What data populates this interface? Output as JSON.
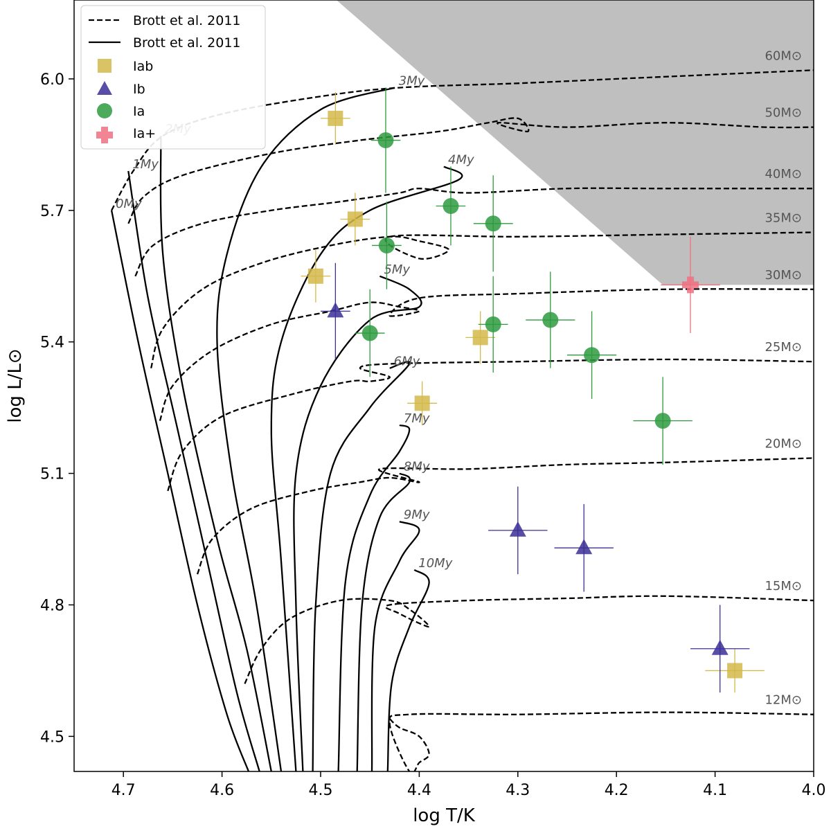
{
  "chart_data": {
    "type": "scatter",
    "xlabel": "log T/K",
    "ylabel": "log L/L⊙",
    "xlim": [
      4.75,
      4.0
    ],
    "ylim": [
      4.42,
      6.18
    ],
    "xticks": [
      "4.7",
      "4.6",
      "4.5",
      "4.4",
      "4.3",
      "4.2",
      "4.1",
      "4.0"
    ],
    "yticks": [
      "4.5",
      "4.8",
      "5.1",
      "5.4",
      "5.7",
      "6.0"
    ],
    "legend": {
      "placement": "top-left",
      "entries": [
        {
          "label": "Brott et al. 2011",
          "kind": "dashed-line"
        },
        {
          "label": "Brott et al. 2011",
          "kind": "solid-line"
        },
        {
          "label": "Iab",
          "kind": "square",
          "color": "#d4b94a"
        },
        {
          "label": "Ib",
          "kind": "triangle",
          "color": "#3b2f96"
        },
        {
          "label": "Ia",
          "kind": "circle",
          "color": "#2e9a3e"
        },
        {
          "label": "Ia+",
          "kind": "plus",
          "color": "#f07080"
        }
      ]
    },
    "forbidden_region": {
      "color": "#bfbfbf",
      "vertices": [
        [
          4.484,
          6.18
        ],
        [
          4.0,
          6.18
        ],
        [
          4.0,
          5.53
        ],
        [
          4.153,
          5.53
        ]
      ]
    },
    "mass_tracks": [
      {
        "label": "60M⊙",
        "points": [
          [
            4.712,
            5.7
          ],
          [
            4.69,
            5.79
          ],
          [
            4.66,
            5.87
          ],
          [
            4.6,
            5.92
          ],
          [
            4.5,
            5.96
          ],
          [
            4.42,
            5.98
          ],
          [
            4.3,
            5.99
          ],
          [
            4.2,
            6.0
          ],
          [
            4.1,
            6.01
          ],
          [
            4.0,
            6.02
          ]
        ]
      },
      {
        "label": "50M⊙",
        "points": [
          [
            4.695,
            5.67
          ],
          [
            4.68,
            5.73
          ],
          [
            4.64,
            5.78
          ],
          [
            4.55,
            5.83
          ],
          [
            4.46,
            5.86
          ],
          [
            4.38,
            5.88
          ],
          [
            4.33,
            5.9
          ],
          [
            4.3,
            5.91
          ],
          [
            4.29,
            5.88
          ],
          [
            4.32,
            5.9
          ],
          [
            4.25,
            5.89
          ],
          [
            4.15,
            5.9
          ],
          [
            4.05,
            5.89
          ],
          [
            4.0,
            5.89
          ]
        ]
      },
      {
        "label": "40M⊙",
        "points": [
          [
            4.688,
            5.55
          ],
          [
            4.67,
            5.62
          ],
          [
            4.62,
            5.67
          ],
          [
            4.55,
            5.7
          ],
          [
            4.48,
            5.72
          ],
          [
            4.42,
            5.74
          ],
          [
            4.4,
            5.75
          ],
          [
            4.35,
            5.74
          ],
          [
            4.25,
            5.75
          ],
          [
            4.15,
            5.75
          ],
          [
            4.0,
            5.75
          ]
        ]
      },
      {
        "label": "35M⊙",
        "points": [
          [
            4.672,
            5.34
          ],
          [
            4.66,
            5.43
          ],
          [
            4.62,
            5.52
          ],
          [
            4.56,
            5.58
          ],
          [
            4.49,
            5.62
          ],
          [
            4.43,
            5.64
          ],
          [
            4.4,
            5.63
          ],
          [
            4.37,
            5.61
          ],
          [
            4.4,
            5.59
          ],
          [
            4.43,
            5.64
          ],
          [
            4.3,
            5.64
          ],
          [
            4.15,
            5.645
          ],
          [
            4.0,
            5.65
          ]
        ]
      },
      {
        "label": "30M⊙",
        "points": [
          [
            4.663,
            5.22
          ],
          [
            4.65,
            5.3
          ],
          [
            4.61,
            5.38
          ],
          [
            4.55,
            5.44
          ],
          [
            4.49,
            5.47
          ],
          [
            4.45,
            5.49
          ],
          [
            4.42,
            5.48
          ],
          [
            4.4,
            5.47
          ],
          [
            4.43,
            5.46
          ],
          [
            4.4,
            5.5
          ],
          [
            4.3,
            5.51
          ],
          [
            4.15,
            5.52
          ],
          [
            4.0,
            5.52
          ]
        ]
      },
      {
        "label": "25M⊙",
        "points": [
          [
            4.655,
            5.06
          ],
          [
            4.64,
            5.15
          ],
          [
            4.6,
            5.23
          ],
          [
            4.53,
            5.28
          ],
          [
            4.47,
            5.31
          ],
          [
            4.45,
            5.31
          ],
          [
            4.43,
            5.32
          ],
          [
            4.46,
            5.34
          ],
          [
            4.43,
            5.35
          ],
          [
            4.3,
            5.355
          ],
          [
            4.15,
            5.36
          ],
          [
            4.0,
            5.355
          ]
        ]
      },
      {
        "label": "20M⊙",
        "points": [
          [
            4.625,
            4.87
          ],
          [
            4.61,
            4.95
          ],
          [
            4.57,
            5.02
          ],
          [
            4.51,
            5.06
          ],
          [
            4.46,
            5.08
          ],
          [
            4.43,
            5.09
          ],
          [
            4.4,
            5.08
          ],
          [
            4.44,
            5.11
          ],
          [
            4.35,
            5.11
          ],
          [
            4.25,
            5.12
          ],
          [
            4.15,
            5.125
          ],
          [
            4.0,
            5.135
          ]
        ]
      },
      {
        "label": "15M⊙",
        "points": [
          [
            4.577,
            4.62
          ],
          [
            4.56,
            4.7
          ],
          [
            4.53,
            4.77
          ],
          [
            4.48,
            4.81
          ],
          [
            4.43,
            4.81
          ],
          [
            4.41,
            4.79
          ],
          [
            4.39,
            4.75
          ],
          [
            4.42,
            4.78
          ],
          [
            4.43,
            4.8
          ],
          [
            4.35,
            4.81
          ],
          [
            4.25,
            4.815
          ],
          [
            4.15,
            4.82
          ],
          [
            4.0,
            4.81
          ]
        ]
      },
      {
        "label": "12M⊙",
        "points": [
          [
            4.43,
            4.54
          ],
          [
            4.42,
            4.52
          ],
          [
            4.4,
            4.5
          ],
          [
            4.39,
            4.46
          ],
          [
            4.4,
            4.44
          ],
          [
            4.41,
            4.42
          ],
          [
            4.43,
            4.53
          ],
          [
            4.41,
            4.55
          ],
          [
            4.3,
            4.55
          ],
          [
            4.15,
            4.555
          ],
          [
            4.0,
            4.55
          ]
        ]
      }
    ],
    "isochrones": [
      {
        "label": "0My",
        "points": [
          [
            4.712,
            5.7
          ],
          [
            4.685,
            5.4
          ],
          [
            4.655,
            5.1
          ],
          [
            4.625,
            4.8
          ],
          [
            4.595,
            4.55
          ],
          [
            4.573,
            4.42
          ]
        ]
      },
      {
        "label": "1My",
        "points": [
          [
            4.695,
            5.79
          ],
          [
            4.675,
            5.5
          ],
          [
            4.645,
            5.2
          ],
          [
            4.615,
            4.9
          ],
          [
            4.585,
            4.6
          ],
          [
            4.562,
            4.42
          ]
        ]
      },
      {
        "label": "2My",
        "points": [
          [
            4.662,
            5.87
          ],
          [
            4.66,
            5.6
          ],
          [
            4.64,
            5.3
          ],
          [
            4.605,
            4.95
          ],
          [
            4.575,
            4.7
          ],
          [
            4.55,
            4.42
          ]
        ]
      },
      {
        "label": "3My",
        "points": [
          [
            4.425,
            5.98
          ],
          [
            4.5,
            5.93
          ],
          [
            4.56,
            5.8
          ],
          [
            4.595,
            5.6
          ],
          [
            4.605,
            5.4
          ],
          [
            4.59,
            5.1
          ],
          [
            4.565,
            4.8
          ],
          [
            4.54,
            4.42
          ]
        ]
      },
      {
        "label": "4My",
        "points": [
          [
            4.375,
            5.8
          ],
          [
            4.36,
            5.77
          ],
          [
            4.45,
            5.7
          ],
          [
            4.5,
            5.6
          ],
          [
            4.54,
            5.4
          ],
          [
            4.55,
            5.2
          ],
          [
            4.54,
            4.9
          ],
          [
            4.525,
            4.42
          ]
        ]
      },
      {
        "label": "5My",
        "points": [
          [
            4.44,
            5.55
          ],
          [
            4.41,
            5.52
          ],
          [
            4.4,
            5.48
          ],
          [
            4.45,
            5.45
          ],
          [
            4.5,
            5.3
          ],
          [
            4.525,
            5.1
          ],
          [
            4.525,
            4.8
          ],
          [
            4.518,
            4.42
          ]
        ]
      },
      {
        "label": "6My",
        "points": [
          [
            4.43,
            5.34
          ],
          [
            4.41,
            5.35
          ],
          [
            4.45,
            5.25
          ],
          [
            4.49,
            5.1
          ],
          [
            4.505,
            4.8
          ],
          [
            4.508,
            4.42
          ]
        ]
      },
      {
        "label": "7My",
        "points": [
          [
            4.42,
            5.21
          ],
          [
            4.41,
            5.2
          ],
          [
            4.42,
            5.15
          ],
          [
            4.45,
            5.05
          ],
          [
            4.475,
            4.85
          ],
          [
            4.482,
            4.42
          ]
        ]
      },
      {
        "label": "8My",
        "points": [
          [
            4.42,
            5.1
          ],
          [
            4.41,
            5.08
          ],
          [
            4.44,
            5.0
          ],
          [
            4.458,
            4.8
          ],
          [
            4.463,
            4.42
          ]
        ]
      },
      {
        "label": "9My",
        "points": [
          [
            4.42,
            4.99
          ],
          [
            4.4,
            4.97
          ],
          [
            4.42,
            4.9
          ],
          [
            4.445,
            4.75
          ],
          [
            4.448,
            4.42
          ]
        ]
      },
      {
        "label": "10My",
        "points": [
          [
            4.405,
            4.88
          ],
          [
            4.39,
            4.85
          ],
          [
            4.41,
            4.75
          ],
          [
            4.428,
            4.62
          ],
          [
            4.432,
            4.42
          ]
        ]
      }
    ],
    "series": [
      {
        "name": "Iab",
        "marker": "square",
        "color": "#d4b94a",
        "points": [
          {
            "x": 4.485,
            "y": 5.91,
            "xerr": 0.015,
            "yerr": 0.06
          },
          {
            "x": 4.465,
            "y": 5.68,
            "xerr": 0.015,
            "yerr": 0.06
          },
          {
            "x": 4.505,
            "y": 5.55,
            "xerr": 0.015,
            "yerr": 0.06
          },
          {
            "x": 4.338,
            "y": 5.41,
            "xerr": 0.015,
            "yerr": 0.06
          },
          {
            "x": 4.397,
            "y": 5.26,
            "xerr": 0.015,
            "yerr": 0.05
          },
          {
            "x": 4.08,
            "y": 4.65,
            "xerr": 0.03,
            "yerr": 0.05
          }
        ]
      },
      {
        "name": "Ib",
        "marker": "triangle",
        "color": "#3b2f96",
        "points": [
          {
            "x": 4.485,
            "y": 5.47,
            "xerr": 0.015,
            "yerr": 0.11
          },
          {
            "x": 4.3,
            "y": 4.97,
            "xerr": 0.03,
            "yerr": 0.1
          },
          {
            "x": 4.233,
            "y": 4.93,
            "xerr": 0.03,
            "yerr": 0.1
          },
          {
            "x": 4.095,
            "y": 4.7,
            "xerr": 0.03,
            "yerr": 0.1
          }
        ]
      },
      {
        "name": "Ia",
        "marker": "circle",
        "color": "#2e9a3e",
        "points": [
          {
            "x": 4.434,
            "y": 5.86,
            "xerr": 0.015,
            "yerr": 0.12
          },
          {
            "x": 4.368,
            "y": 5.71,
            "xerr": 0.015,
            "yerr": 0.09
          },
          {
            "x": 4.325,
            "y": 5.67,
            "xerr": 0.02,
            "yerr": 0.11
          },
          {
            "x": 4.433,
            "y": 5.62,
            "xerr": 0.015,
            "yerr": 0.1
          },
          {
            "x": 4.45,
            "y": 5.42,
            "xerr": 0.015,
            "yerr": 0.1
          },
          {
            "x": 4.325,
            "y": 5.44,
            "xerr": 0.015,
            "yerr": 0.11
          },
          {
            "x": 4.267,
            "y": 5.45,
            "xerr": 0.025,
            "yerr": 0.11
          },
          {
            "x": 4.225,
            "y": 5.37,
            "xerr": 0.025,
            "yerr": 0.1
          },
          {
            "x": 4.153,
            "y": 5.22,
            "xerr": 0.03,
            "yerr": 0.1
          }
        ]
      },
      {
        "name": "Ia+",
        "marker": "plus",
        "color": "#f07080",
        "points": [
          {
            "x": 4.125,
            "y": 5.53,
            "xerr": 0.03,
            "yerr": 0.11
          }
        ]
      }
    ]
  }
}
